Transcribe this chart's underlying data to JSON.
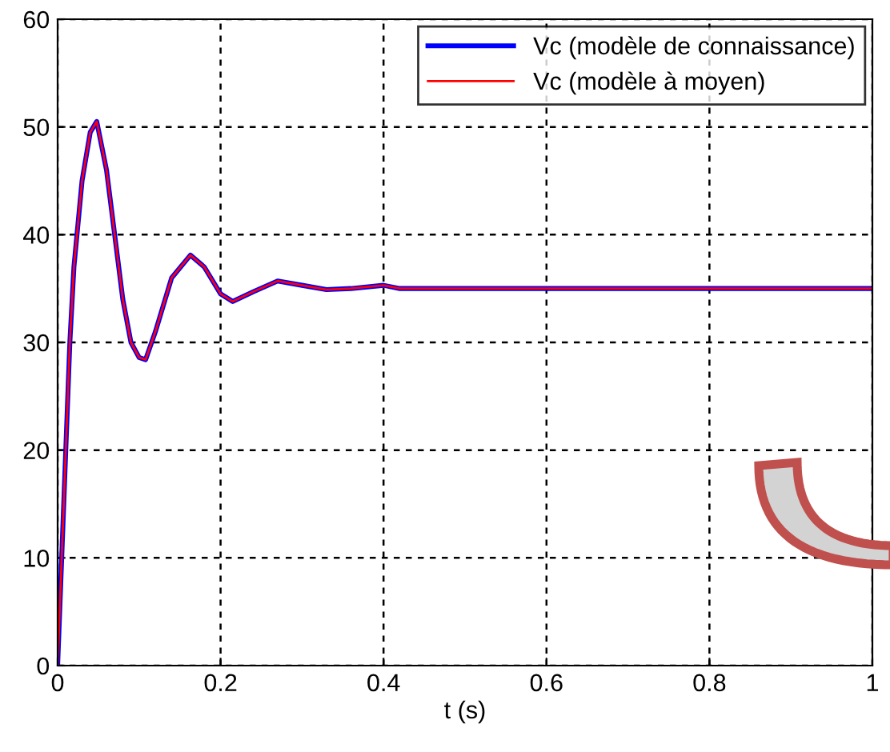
{
  "chart_data": {
    "type": "line",
    "xlabel": "t (s)",
    "xlim": [
      0,
      1
    ],
    "xticks": [
      0,
      0.2,
      0.4,
      0.6,
      0.8,
      1
    ],
    "ylim": [
      0,
      60
    ],
    "yticks": [
      0,
      10,
      20,
      30,
      40,
      50,
      60
    ],
    "grid": true,
    "legend": "top right",
    "x": [
      0,
      0.005,
      0.01,
      0.015,
      0.02,
      0.03,
      0.04,
      0.048,
      0.06,
      0.07,
      0.08,
      0.09,
      0.1,
      0.108,
      0.12,
      0.14,
      0.163,
      0.18,
      0.2,
      0.215,
      0.24,
      0.27,
      0.3,
      0.33,
      0.36,
      0.4,
      0.42,
      0.6,
      0.8,
      1
    ],
    "series": [
      {
        "name": "Vc (modèle de connaissance)",
        "color": "#0000ff",
        "values": [
          0,
          10,
          20,
          30,
          37,
          45,
          49.5,
          50.5,
          46,
          40,
          34,
          30,
          28.6,
          28.4,
          31,
          36,
          38.1,
          37,
          34.5,
          33.8,
          34.7,
          35.7,
          35.3,
          34.9,
          35,
          35.3,
          35,
          35,
          35,
          35
        ]
      },
      {
        "name": "Vc (modèle à moyen)",
        "color": "#ff0000",
        "values": [
          0,
          10,
          20,
          30,
          37,
          45,
          49.5,
          50.5,
          46,
          40,
          34,
          30,
          28.6,
          28.4,
          31,
          36,
          38.1,
          37,
          34.5,
          33.8,
          34.7,
          35.7,
          35.3,
          34.9,
          35,
          35.3,
          35,
          35,
          35,
          35
        ]
      }
    ]
  }
}
